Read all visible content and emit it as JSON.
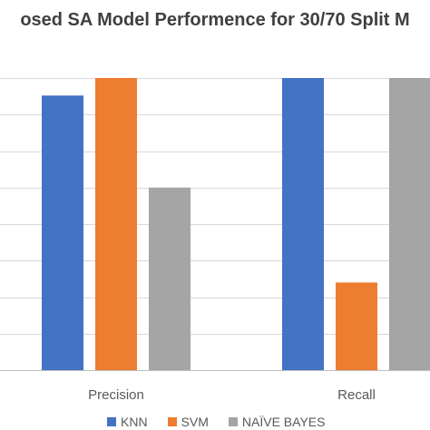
{
  "chart_data": {
    "type": "bar",
    "title": "osed SA Model Performence for 30/70 Split M",
    "categories": [
      "Precision",
      "Recall"
    ],
    "series": [
      {
        "name": "KNN",
        "values": [
          0.94,
          1.0
        ],
        "color": "#4472C4"
      },
      {
        "name": "SVM",
        "values": [
          1.0,
          0.3
        ],
        "color": "#ED7D31"
      },
      {
        "name": "NAÏVE BAYES",
        "values": [
          0.625,
          1.0
        ],
        "color": "#A5A5A5"
      }
    ],
    "ylim": [
      0,
      1.0
    ],
    "grid": true,
    "legend": "bottom"
  }
}
